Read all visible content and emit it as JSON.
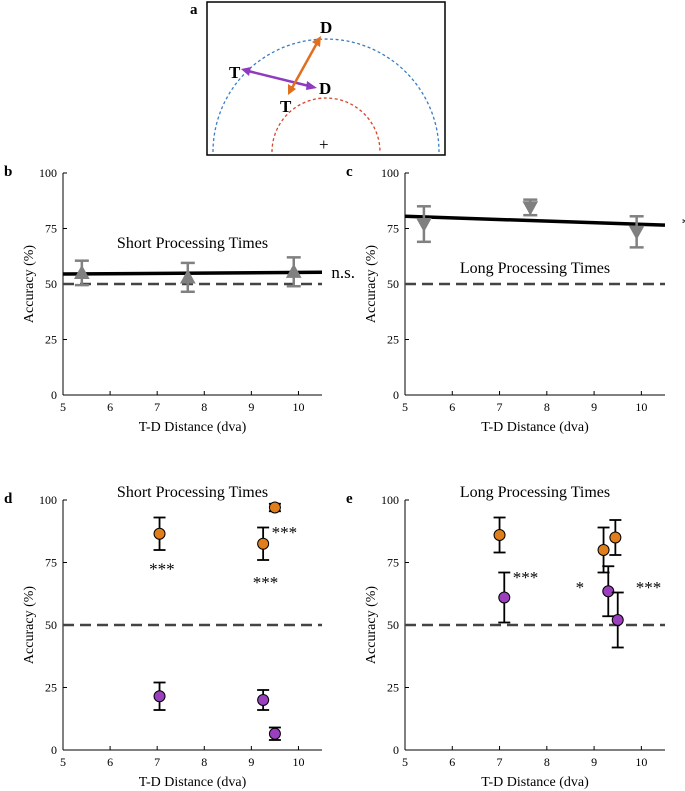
{
  "diagram": {
    "letter": "a",
    "labels": {
      "target_outer": "T",
      "distractor_outer": "D",
      "target_inner": "T",
      "distractor_inner": "D",
      "fixation": "+"
    },
    "colors": {
      "outer_ring": "#3b7dc4",
      "inner_ring": "#d9452b",
      "purple_arrow": "#8e3bbf",
      "orange_arrow": "#e07020"
    }
  },
  "chart_data": [
    {
      "panel": "b",
      "type": "scatter",
      "title": "Short Processing Times",
      "xlabel": "T-D Distance (dva)",
      "ylabel": "Accuracy (%)",
      "xlim": [
        5,
        10.5
      ],
      "ylim": [
        0,
        100
      ],
      "xticks": [
        "5",
        "6",
        "7",
        "8",
        "9",
        "10"
      ],
      "yticks": [
        "0",
        "25",
        "50",
        "75",
        "100"
      ],
      "marker": "triangle-up",
      "color": "#808080",
      "points": [
        {
          "x": 5.4,
          "y": 55,
          "err": 5.5
        },
        {
          "x": 7.65,
          "y": 53,
          "err": 6.5
        },
        {
          "x": 9.9,
          "y": 55.5,
          "err": 6.5
        }
      ],
      "fit_line": {
        "x": [
          5,
          10.5
        ],
        "y": [
          54.5,
          55.3
        ]
      },
      "chance": 50,
      "annotation": {
        "text": "n.s.",
        "x": 10.7,
        "y": 55
      }
    },
    {
      "panel": "c",
      "type": "scatter",
      "title": "Long Processing Times",
      "xlabel": "T-D Distance (dva)",
      "ylabel": "Accuracy (%)",
      "xlim": [
        5,
        10.5
      ],
      "ylim": [
        0,
        100
      ],
      "xticks": [
        "5",
        "6",
        "7",
        "8",
        "9",
        "10"
      ],
      "yticks": [
        "0",
        "25",
        "50",
        "75",
        "100"
      ],
      "marker": "triangle-down",
      "color": "#808080",
      "points": [
        {
          "x": 5.4,
          "y": 77,
          "err": 8
        },
        {
          "x": 7.65,
          "y": 84.5,
          "err": 3.5
        },
        {
          "x": 9.9,
          "y": 73.5,
          "err": 7
        }
      ],
      "fit_line": {
        "x": [
          5,
          10.5
        ],
        "y": [
          80.5,
          76.5
        ]
      },
      "chance": 50,
      "annotation": {
        "text": "*",
        "x": 10.85,
        "y": 77
      }
    },
    {
      "panel": "d",
      "type": "scatter",
      "title": "Short Processing Times",
      "xlabel": "T-D Distance (dva)",
      "ylabel": "Accuracy (%)",
      "xlim": [
        5,
        10.5
      ],
      "ylim": [
        0,
        100
      ],
      "xticks": [
        "5",
        "6",
        "7",
        "8",
        "9",
        "10"
      ],
      "yticks": [
        "0",
        "25",
        "50",
        "75",
        "100"
      ],
      "chance": 50,
      "series": [
        {
          "name": "orange",
          "color": "#e07e1c",
          "points": [
            {
              "x": 7.05,
              "y": 86.5,
              "err": 6.5
            },
            {
              "x": 9.25,
              "y": 82.5,
              "err": 6.5
            },
            {
              "x": 9.5,
              "y": 97,
              "err": 1.5
            }
          ]
        },
        {
          "name": "purple",
          "color": "#9b3fbf",
          "points": [
            {
              "x": 7.05,
              "y": 21.5,
              "err": 5.5
            },
            {
              "x": 9.25,
              "y": 20,
              "err": 4
            },
            {
              "x": 9.5,
              "y": 6.5,
              "err": 2.5
            }
          ]
        }
      ],
      "annotations": [
        {
          "text": "***",
          "x": 7.1,
          "y": 73.5
        },
        {
          "text": "***",
          "x": 9.3,
          "y": 68
        },
        {
          "text": "***",
          "x": 9.7,
          "y": 88
        }
      ]
    },
    {
      "panel": "e",
      "type": "scatter",
      "title": "Long Processing Times",
      "xlabel": "T-D Distance (dva)",
      "ylabel": "Accuracy (%)",
      "xlim": [
        5,
        10.5
      ],
      "ylim": [
        0,
        100
      ],
      "xticks": [
        "5",
        "6",
        "7",
        "8",
        "9",
        "10"
      ],
      "yticks": [
        "0",
        "25",
        "50",
        "75",
        "100"
      ],
      "chance": 50,
      "series": [
        {
          "name": "orange",
          "color": "#e07e1c",
          "points": [
            {
              "x": 7.0,
              "y": 86,
              "err": 7
            },
            {
              "x": 9.2,
              "y": 80,
              "err": 9
            },
            {
              "x": 9.45,
              "y": 85,
              "err": 7
            }
          ]
        },
        {
          "name": "purple",
          "color": "#9b3fbf",
          "points": [
            {
              "x": 7.1,
              "y": 61,
              "err": 10
            },
            {
              "x": 9.3,
              "y": 63.5,
              "err": 10
            },
            {
              "x": 9.5,
              "y": 52,
              "err": 11
            }
          ]
        }
      ],
      "annotations": [
        {
          "text": "***",
          "x": 7.55,
          "y": 70
        },
        {
          "text": "*",
          "x": 8.7,
          "y": 66
        },
        {
          "text": "***",
          "x": 10.15,
          "y": 66
        }
      ]
    }
  ]
}
